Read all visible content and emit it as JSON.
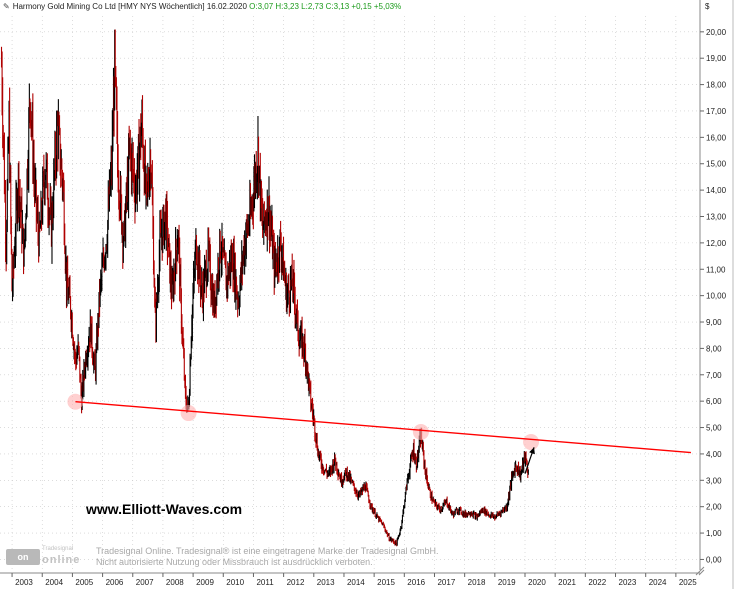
{
  "header": {
    "title": "Harmony Gold Mining Co Ltd [HMY NYS  Wöchentlich] 16.02.2020",
    "ohlc": "O:3,07 H:3,23 L:2,73 C:3,13 +0,15 +5,03%"
  },
  "watermark": "www.Elliott-Waves.com",
  "logo": {
    "brand": "Tradesignal",
    "text_online": "online",
    "box_text": "on"
  },
  "disclaimer": {
    "line1": "Tradesignal Online. Tradesignal® ist eine eingetragene Marke der Tradesignal GmbH.",
    "line2": "Nicht autorisierte Nutzung oder Missbrauch ist ausdrücklich verboten."
  },
  "chart_data": {
    "type": "line",
    "subtype": "bar-ohlc",
    "title": "Harmony Gold Mining Co Ltd [HMY NYS  Wöchentlich] 16.02.2020",
    "currency_label": "$",
    "xlim": [
      2002.6,
      2025.8
    ],
    "ylim": [
      -0.4,
      20.6
    ],
    "y_ticks": [
      0,
      1,
      2,
      3,
      4,
      5,
      6,
      7,
      8,
      9,
      10,
      11,
      12,
      13,
      14,
      15,
      16,
      17,
      18,
      19,
      20
    ],
    "y_tick_labels": [
      "0,00",
      "1,00",
      "2,00",
      "3,00",
      "4,00",
      "5,00",
      "6,00",
      "7,00",
      "8,00",
      "9,00",
      "10,00",
      "11,00",
      "12,00",
      "13,00",
      "14,00",
      "15,00",
      "16,00",
      "17,00",
      "18,00",
      "19,00",
      "20,00"
    ],
    "x_ticks": [
      2003,
      2004,
      2005,
      2006,
      2007,
      2008,
      2009,
      2010,
      2011,
      2012,
      2013,
      2014,
      2015,
      2016,
      2017,
      2018,
      2019,
      2020,
      2021,
      2022,
      2023,
      2024,
      2025
    ],
    "grid": true,
    "colors": {
      "up": "#000000",
      "down": "#b00000",
      "trendline": "#ff0000",
      "touch": "#ffb0b0",
      "axis_text": "#222222",
      "grid": "#c8c8c8"
    },
    "price_path": [
      [
        2002.65,
        18.8
      ],
      [
        2002.8,
        12.0
      ],
      [
        2002.9,
        16.5
      ],
      [
        2003.0,
        10.0
      ],
      [
        2003.2,
        14.5
      ],
      [
        2003.4,
        11.5
      ],
      [
        2003.6,
        17.8
      ],
      [
        2003.75,
        14.0
      ],
      [
        2003.9,
        12.0
      ],
      [
        2004.1,
        15.0
      ],
      [
        2004.3,
        12.5
      ],
      [
        2004.5,
        16.5
      ],
      [
        2004.7,
        14.0
      ],
      [
        2004.8,
        10.5
      ],
      [
        2004.95,
        9.5
      ],
      [
        2005.1,
        7.5
      ],
      [
        2005.2,
        8.0
      ],
      [
        2005.3,
        6.0
      ],
      [
        2005.45,
        7.8
      ],
      [
        2005.6,
        8.8
      ],
      [
        2005.75,
        7.0
      ],
      [
        2005.9,
        10.0
      ],
      [
        2006.15,
        12.5
      ],
      [
        2006.3,
        14.8
      ],
      [
        2006.4,
        18.7
      ],
      [
        2006.5,
        15.0
      ],
      [
        2006.7,
        12.0
      ],
      [
        2006.9,
        15.5
      ],
      [
        2007.1,
        14.0
      ],
      [
        2007.3,
        16.5
      ],
      [
        2007.45,
        13.5
      ],
      [
        2007.6,
        15.5
      ],
      [
        2007.75,
        8.8
      ],
      [
        2007.9,
        12.0
      ],
      [
        2008.1,
        13.0
      ],
      [
        2008.3,
        10.0
      ],
      [
        2008.5,
        12.5
      ],
      [
        2008.6,
        9.5
      ],
      [
        2008.75,
        6.0
      ],
      [
        2008.85,
        5.7
      ],
      [
        2008.95,
        9.0
      ],
      [
        2009.1,
        12.0
      ],
      [
        2009.3,
        10.0
      ],
      [
        2009.5,
        11.5
      ],
      [
        2009.7,
        9.5
      ],
      [
        2009.9,
        12.0
      ],
      [
        2010.1,
        10.5
      ],
      [
        2010.3,
        11.5
      ],
      [
        2010.5,
        9.8
      ],
      [
        2010.7,
        12.0
      ],
      [
        2010.9,
        13.0
      ],
      [
        2011.05,
        14.5
      ],
      [
        2011.15,
        15.5
      ],
      [
        2011.3,
        12.5
      ],
      [
        2011.5,
        13.5
      ],
      [
        2011.7,
        11.0
      ],
      [
        2011.9,
        12.0
      ],
      [
        2012.1,
        10.0
      ],
      [
        2012.3,
        10.5
      ],
      [
        2012.5,
        8.5
      ],
      [
        2012.7,
        8.0
      ],
      [
        2012.9,
        6.0
      ],
      [
        2013.0,
        5.3
      ],
      [
        2013.15,
        4.0
      ],
      [
        2013.3,
        3.5
      ],
      [
        2013.5,
        3.2
      ],
      [
        2013.7,
        3.8
      ],
      [
        2013.9,
        3.0
      ],
      [
        2014.1,
        3.3
      ],
      [
        2014.3,
        2.8
      ],
      [
        2014.5,
        2.4
      ],
      [
        2014.7,
        2.8
      ],
      [
        2014.9,
        2.0
      ],
      [
        2015.1,
        1.6
      ],
      [
        2015.3,
        1.3
      ],
      [
        2015.5,
        0.8
      ],
      [
        2015.75,
        0.6
      ],
      [
        2015.9,
        1.3
      ],
      [
        2016.1,
        3.0
      ],
      [
        2016.3,
        4.2
      ],
      [
        2016.4,
        3.6
      ],
      [
        2016.55,
        4.7
      ],
      [
        2016.7,
        3.3
      ],
      [
        2016.85,
        2.5
      ],
      [
        2017.0,
        2.1
      ],
      [
        2017.2,
        1.9
      ],
      [
        2017.4,
        2.2
      ],
      [
        2017.6,
        1.7
      ],
      [
        2017.8,
        1.9
      ],
      [
        2018.0,
        1.7
      ],
      [
        2018.2,
        1.8
      ],
      [
        2018.4,
        1.6
      ],
      [
        2018.6,
        1.9
      ],
      [
        2018.8,
        1.7
      ],
      [
        2019.0,
        1.6
      ],
      [
        2019.2,
        1.8
      ],
      [
        2019.4,
        2.0
      ],
      [
        2019.55,
        3.0
      ],
      [
        2019.7,
        3.6
      ],
      [
        2019.85,
        3.2
      ],
      [
        2020.0,
        3.9
      ],
      [
        2020.13,
        3.13
      ]
    ],
    "annotations": {
      "trendline": {
        "from": [
          2005.1,
          5.98
        ],
        "to": [
          2025.5,
          4.05
        ]
      },
      "touch_points": [
        [
          2005.1,
          5.98
        ],
        [
          2008.85,
          5.55
        ],
        [
          2016.55,
          4.83
        ],
        [
          2020.2,
          4.45
        ]
      ],
      "arrow": {
        "from": [
          2020.0,
          3.25
        ],
        "to": [
          2020.3,
          4.25
        ]
      }
    }
  }
}
